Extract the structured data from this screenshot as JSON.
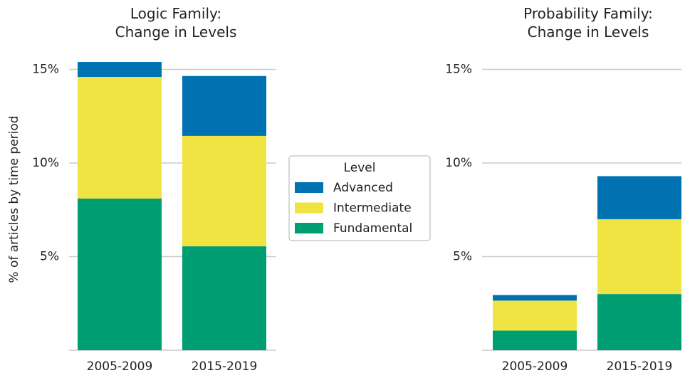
{
  "chart_data": [
    {
      "type": "stacked_bar",
      "title": "Logic Family:\nChange in Levels",
      "y_label": "% of articles by time period",
      "legend_title": "Level",
      "categories": [
        "2005-2009",
        "2015-2019"
      ],
      "series": [
        {
          "name": "Fundamental",
          "color": "#009e73",
          "values": [
            8.1,
            5.55
          ]
        },
        {
          "name": "Intermediate",
          "color": "#f0e442",
          "values": [
            6.5,
            5.9
          ]
        },
        {
          "name": "Advanced",
          "color": "#0072b2",
          "values": [
            0.8,
            3.2
          ]
        }
      ],
      "ylim": [
        0,
        15.5
      ],
      "yticks": [
        {
          "value": 5,
          "label": "5%"
        },
        {
          "value": 10,
          "label": "10%"
        },
        {
          "value": 15,
          "label": "15%"
        }
      ],
      "grid": true
    },
    {
      "type": "stacked_bar",
      "title": "Probability Family:\nChange in Levels",
      "categories": [
        "2005-2009",
        "2015-2019"
      ],
      "series": [
        {
          "name": "Fundamental",
          "color": "#009e73",
          "values": [
            1.05,
            3.0
          ]
        },
        {
          "name": "Intermediate",
          "color": "#f0e442",
          "values": [
            1.6,
            4.0
          ]
        },
        {
          "name": "Advanced",
          "color": "#0072b2",
          "values": [
            0.3,
            2.3
          ]
        }
      ],
      "ylim": [
        0,
        15.5
      ],
      "yticks": [
        {
          "value": 5,
          "label": "5%"
        },
        {
          "value": 10,
          "label": "10%"
        },
        {
          "value": 15,
          "label": "15%"
        }
      ],
      "grid": true
    }
  ]
}
